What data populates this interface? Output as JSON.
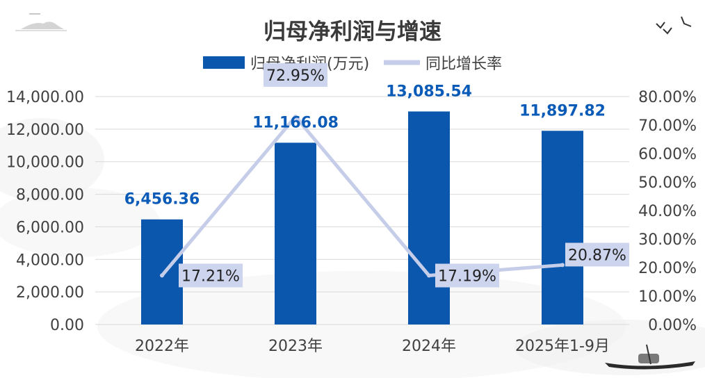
{
  "chart_data": {
    "type": "bar+line",
    "title": "归母净利润与增速",
    "categories": [
      "2022年",
      "2023年",
      "2024年",
      "2025年1-9月"
    ],
    "series": [
      {
        "name": "归母净利润(万元)",
        "type": "bar",
        "axis": "left",
        "color": "#0a57ad",
        "values": [
          6456.36,
          11166.08,
          13085.54,
          11897.82
        ],
        "labels": [
          "6,456.36",
          "11,166.08",
          "13,085.54",
          "11,897.82"
        ]
      },
      {
        "name": "同比增长率",
        "type": "line",
        "axis": "right",
        "color": "#c5cde9",
        "values": [
          17.21,
          72.95,
          17.19,
          20.87
        ],
        "labels": [
          "17.21%",
          "72.95%",
          "17.19%",
          "20.87%"
        ]
      }
    ],
    "y_left": {
      "min": 0,
      "max": 14000,
      "ticks": [
        "0.00",
        "2,000.00",
        "4,000.00",
        "6,000.00",
        "8,000.00",
        "10,000.00",
        "12,000.00",
        "14,000.00"
      ]
    },
    "y_right": {
      "min": 0,
      "max": 80,
      "ticks": [
        "0.00%",
        "10.00%",
        "20.00%",
        "30.00%",
        "40.00%",
        "50.00%",
        "60.00%",
        "70.00%",
        "80.00%"
      ]
    },
    "grid": true,
    "legend": "top-center",
    "bar_label_color": "#0a5bb8",
    "line_label_bg": "#cdd4ee"
  }
}
